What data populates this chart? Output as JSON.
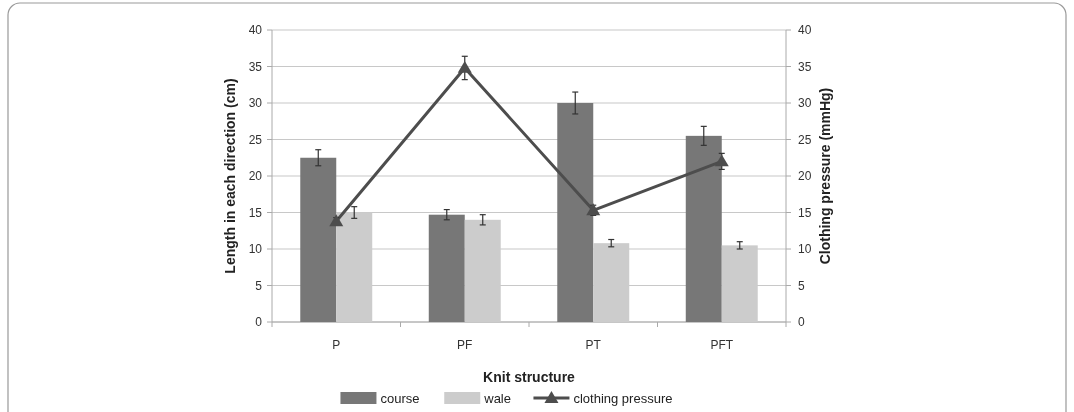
{
  "chart_data": {
    "type": "bar",
    "xlabel": "Knit structure",
    "ylabel": "Length in each direction (cm)",
    "y2label": "Clothing pressure (mmHg)",
    "categories": [
      "P",
      "PF",
      "PT",
      "PFT"
    ],
    "series": [
      {
        "name": "course",
        "color": "#777777",
        "values": [
          22.5,
          14.7,
          30,
          25.5
        ],
        "errors": [
          1.1,
          0.7,
          1.5,
          1.3
        ]
      },
      {
        "name": "wale",
        "color": "#cccccc",
        "values": [
          15,
          14,
          10.8,
          10.5
        ],
        "errors": [
          0.8,
          0.7,
          0.5,
          0.5
        ]
      },
      {
        "name": "clothing pressure",
        "type": "line",
        "axis": "y2",
        "color": "#4d4d4d",
        "marker": "triangle",
        "values": [
          13.8,
          34.8,
          15.3,
          22
        ],
        "errors": [
          0.5,
          1.6,
          0.7,
          1.1
        ]
      }
    ],
    "ylim": [
      0,
      40
    ],
    "yticks": [
      0,
      5,
      10,
      15,
      20,
      25,
      30,
      35,
      40
    ],
    "y2lim": [
      0,
      40
    ],
    "y2ticks": [
      0,
      5,
      10,
      15,
      20,
      25,
      30,
      35,
      40
    ],
    "grid": "y",
    "legend": "bottom"
  }
}
